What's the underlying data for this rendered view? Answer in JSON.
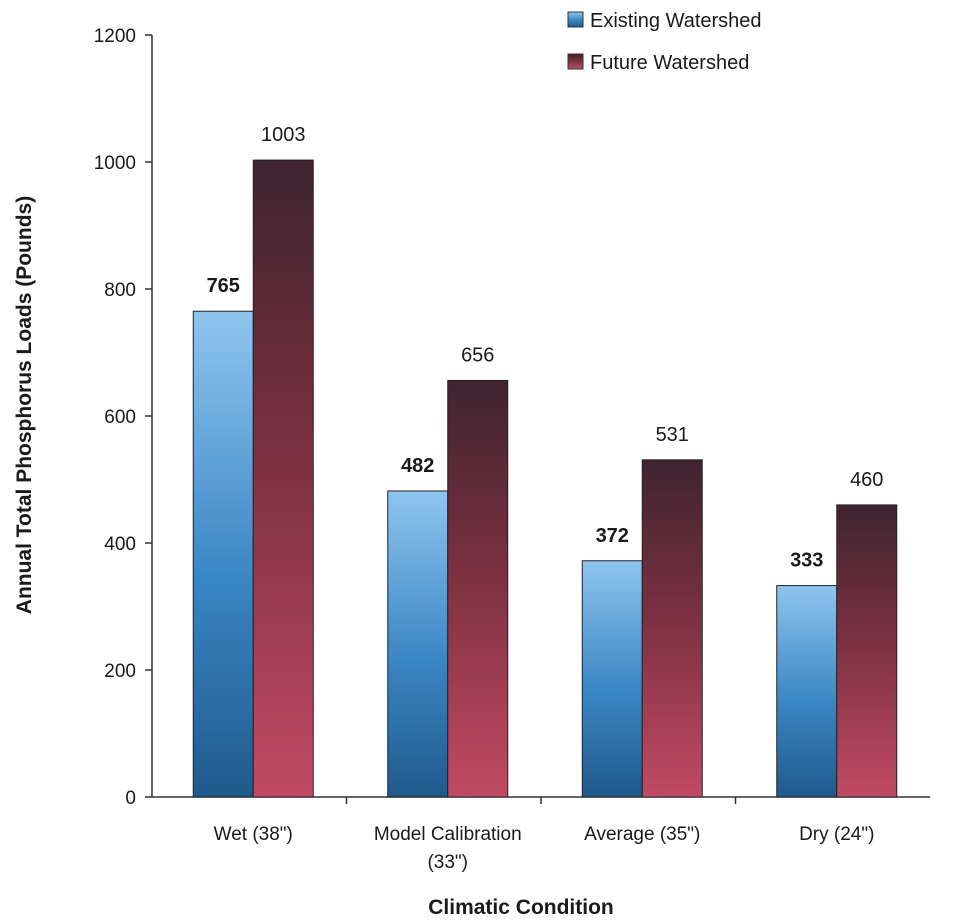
{
  "chart_data": {
    "type": "bar",
    "title": "",
    "xlabel": "Climatic Condition",
    "ylabel": "Annual Total Phosphorus Loads (Pounds)",
    "ylim": [
      0,
      1200
    ],
    "yticks": [
      0,
      200,
      400,
      600,
      800,
      1000,
      1200
    ],
    "grid": false,
    "legend_position": "top-right",
    "categories": [
      [
        "Wet (38\")"
      ],
      [
        "Model Calibration",
        "(33\")"
      ],
      [
        "Average (35\")"
      ],
      [
        "Dry (24\")"
      ]
    ],
    "series": [
      {
        "name": "Existing Watershed",
        "values": [
          765,
          482,
          372,
          333
        ],
        "labels": [
          "765",
          "482",
          "372",
          "333"
        ],
        "color_top": "#8ec5ef",
        "color_bottom": "#1f5a8c"
      },
      {
        "name": "Future Watershed",
        "values": [
          1003,
          656,
          531,
          460
        ],
        "labels": [
          "1003",
          "656",
          "531",
          "460"
        ],
        "color_top": "#3f2430",
        "color_bottom": "#c24a65"
      }
    ]
  }
}
